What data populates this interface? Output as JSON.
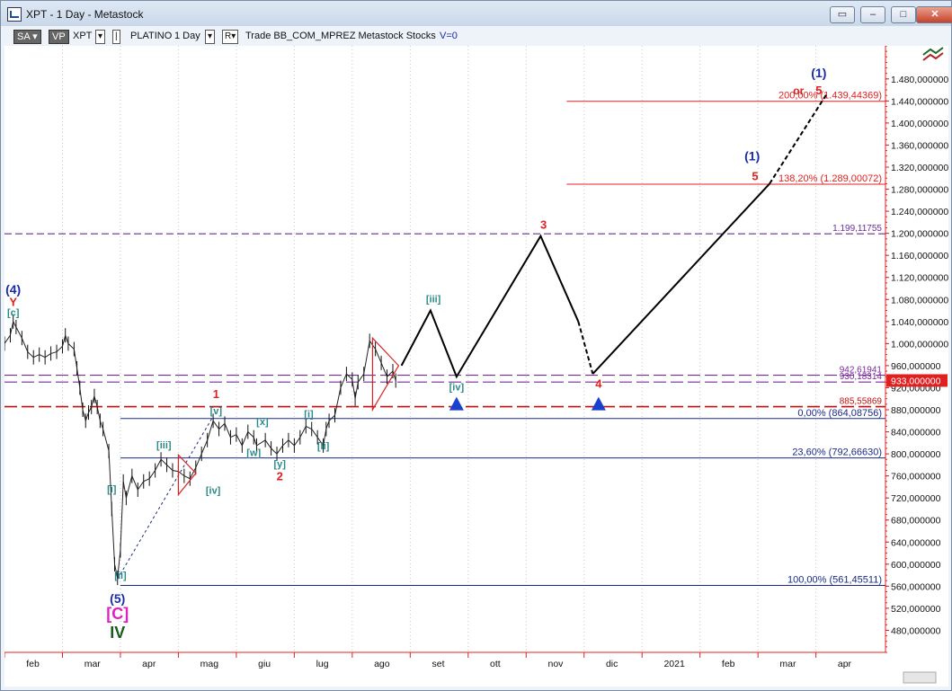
{
  "window": {
    "title": "XPT - 1 Day - Metastock",
    "buttons": [
      "restore-icon",
      "minimize-icon",
      "maximize-icon",
      "close-icon"
    ]
  },
  "toolbar": {
    "sa": "SA",
    "vp": "VP",
    "symbol": "XPT",
    "name": "PLATINO",
    "interval": "1 Day",
    "r": "R",
    "rest": "Trade  BB_COM_MPREZ  Metastock  Stocks",
    "v": "V=0"
  },
  "chart_data": {
    "type": "line",
    "ylim": [
      440,
      1540
    ],
    "y_ticks": [
      480,
      520,
      560,
      600,
      640,
      680,
      720,
      760,
      800,
      840,
      880,
      920,
      960,
      1000,
      1040,
      1080,
      1120,
      1160,
      1200,
      1240,
      1280,
      1320,
      1360,
      1400,
      1440,
      1480
    ],
    "y_tick_labels": [
      "480,000000",
      "520,000000",
      "560,000000",
      "600,000000",
      "640,000000",
      "680,000000",
      "720,000000",
      "760,000000",
      "800,000000",
      "840,000000",
      "880,000000",
      "920,000000",
      "960,000000",
      "1.000,000000",
      "1.040,000000",
      "1.080,000000",
      "1.120,000000",
      "1.160,000000",
      "1.200,000000",
      "1.240,000000",
      "1.280,000000",
      "1.320,000000",
      "1.360,000000",
      "1.400,000000",
      "1.440,000000",
      "1.480,000000"
    ],
    "x_ticks": [
      "feb",
      "mar",
      "apr",
      "mag",
      "giu",
      "lug",
      "ago",
      "set",
      "ott",
      "nov",
      "dic",
      "2021",
      "feb",
      "mar",
      "apr"
    ],
    "x_tick_pos": [
      0.5,
      1.5,
      2.5,
      3.5,
      4.5,
      5.5,
      6.5,
      7.5,
      8.5,
      9.5,
      10.5,
      11.5,
      12.5,
      13.5,
      14.5
    ],
    "last_price": 933,
    "last_price_label": "933,000000",
    "price_series": {
      "name": "",
      "points": [
        [
          0.0,
          1000
        ],
        [
          0.1,
          1015
        ],
        [
          0.15,
          1040
        ],
        [
          0.2,
          1030
        ],
        [
          0.3,
          1010
        ],
        [
          0.4,
          985
        ],
        [
          0.5,
          975
        ],
        [
          0.6,
          980
        ],
        [
          0.7,
          975
        ],
        [
          0.8,
          982
        ],
        [
          0.9,
          985
        ],
        [
          1.0,
          995
        ],
        [
          1.05,
          1015
        ],
        [
          1.1,
          1000
        ],
        [
          1.2,
          990
        ],
        [
          1.25,
          955
        ],
        [
          1.3,
          920
        ],
        [
          1.35,
          880
        ],
        [
          1.4,
          860
        ],
        [
          1.45,
          875
        ],
        [
          1.5,
          885
        ],
        [
          1.55,
          905
        ],
        [
          1.6,
          885
        ],
        [
          1.65,
          860
        ],
        [
          1.7,
          845
        ],
        [
          1.8,
          805
        ],
        [
          1.85,
          700
        ],
        [
          1.9,
          600
        ],
        [
          1.95,
          575
        ],
        [
          2.0,
          625
        ],
        [
          2.05,
          750
        ],
        [
          2.1,
          720
        ],
        [
          2.2,
          760
        ],
        [
          2.3,
          735
        ],
        [
          2.4,
          750
        ],
        [
          2.5,
          755
        ],
        [
          2.6,
          770
        ],
        [
          2.7,
          790
        ],
        [
          2.8,
          780
        ],
        [
          2.9,
          770
        ],
        [
          3.0,
          768
        ],
        [
          3.1,
          760
        ],
        [
          3.2,
          755
        ],
        [
          3.3,
          775
        ],
        [
          3.4,
          800
        ],
        [
          3.5,
          825
        ],
        [
          3.6,
          860
        ],
        [
          3.7,
          845
        ],
        [
          3.8,
          855
        ],
        [
          3.9,
          830
        ],
        [
          4.0,
          835
        ],
        [
          4.1,
          815
        ],
        [
          4.2,
          840
        ],
        [
          4.3,
          830
        ],
        [
          4.35,
          815
        ],
        [
          4.5,
          825
        ],
        [
          4.6,
          810
        ],
        [
          4.7,
          800
        ],
        [
          4.8,
          815
        ],
        [
          4.9,
          825
        ],
        [
          5.0,
          815
        ],
        [
          5.1,
          830
        ],
        [
          5.2,
          850
        ],
        [
          5.3,
          845
        ],
        [
          5.4,
          830
        ],
        [
          5.5,
          815
        ],
        [
          5.55,
          845
        ],
        [
          5.6,
          860
        ],
        [
          5.7,
          870
        ],
        [
          5.8,
          920
        ],
        [
          5.9,
          945
        ],
        [
          6.0,
          935
        ],
        [
          6.05,
          900
        ],
        [
          6.1,
          930
        ],
        [
          6.2,
          945
        ],
        [
          6.3,
          1005
        ],
        [
          6.4,
          990
        ],
        [
          6.5,
          965
        ],
        [
          6.6,
          940
        ],
        [
          6.7,
          950
        ],
        [
          6.75,
          933
        ]
      ]
    },
    "projection": {
      "solid": [
        [
          6.85,
          960
        ],
        [
          7.35,
          1060
        ],
        [
          7.8,
          940
        ],
        [
          9.25,
          1195
        ],
        [
          9.9,
          1040
        ]
      ],
      "dashed_1": [
        [
          9.9,
          1040
        ],
        [
          10.15,
          945
        ]
      ],
      "solid_2": [
        [
          10.15,
          945
        ],
        [
          13.2,
          1290
        ]
      ],
      "dashed_2": [
        [
          13.2,
          1290
        ],
        [
          14.2,
          1455
        ]
      ]
    },
    "fib_levels": [
      {
        "label": "200,00% (1.439,44369)",
        "value": 1439.44,
        "color": "#e02020"
      },
      {
        "label": "138,20% (1.289,00072)",
        "value": 1289.0,
        "color": "#e02020"
      },
      {
        "label": "0,00% (864,08756)",
        "value": 864.09,
        "color": "#1a2a8a"
      },
      {
        "label": "23,60% (792,66630)",
        "value": 792.67,
        "color": "#1a2a8a"
      },
      {
        "label": "100,00% (561,45511)",
        "value": 561.46,
        "color": "#1a2a8a"
      }
    ],
    "h_lines": [
      {
        "label": "1.199,11755",
        "value": 1199.12,
        "color": "#6b2a9a",
        "style": "dash"
      },
      {
        "label": "942,61941",
        "value": 942.62,
        "color": "#7a2a9a",
        "style": "dash"
      },
      {
        "label": "930,18314",
        "value": 930.18,
        "color": "#7a2a9a",
        "style": "dash"
      },
      {
        "label": "885,55869",
        "value": 885.56,
        "color": "#c01010",
        "style": "dash"
      }
    ],
    "wave_labels": [
      {
        "text": "(4)",
        "x": 0.15,
        "y": 1090,
        "color": "#1a2aaa",
        "size": 14
      },
      {
        "text": "Y",
        "x": 0.15,
        "y": 1068,
        "color": "#e02020",
        "size": 13
      },
      {
        "text": "[c]",
        "x": 0.15,
        "y": 1050,
        "color": "#2a8a8a",
        "size": 11
      },
      {
        "text": "(5)",
        "x": 1.95,
        "y": 530,
        "color": "#1a2aaa",
        "size": 14
      },
      {
        "text": "[C]",
        "x": 1.95,
        "y": 500,
        "color": "#e020c0",
        "size": 18
      },
      {
        "text": "IV",
        "x": 1.95,
        "y": 466,
        "color": "#1a5a1a",
        "size": 18
      },
      {
        "text": "[i]",
        "x": 1.85,
        "y": 730,
        "color": "#2a8a8a",
        "size": 11
      },
      {
        "text": "[ii]",
        "x": 2.0,
        "y": 574,
        "color": "#2a8a8a",
        "size": 11
      },
      {
        "text": "[iii]",
        "x": 2.75,
        "y": 810,
        "color": "#2a8a8a",
        "size": 11
      },
      {
        "text": "[iv]",
        "x": 3.6,
        "y": 728,
        "color": "#2a8a8a",
        "size": 11
      },
      {
        "text": "[v]",
        "x": 3.65,
        "y": 872,
        "color": "#2a8a8a",
        "size": 11
      },
      {
        "text": "1",
        "x": 3.65,
        "y": 901,
        "color": "#e02020",
        "size": 13
      },
      {
        "text": "[w]",
        "x": 4.3,
        "y": 796,
        "color": "#2a8a8a",
        "size": 11
      },
      {
        "text": "[x]",
        "x": 4.45,
        "y": 852,
        "color": "#2a8a8a",
        "size": 11
      },
      {
        "text": "[y]",
        "x": 4.75,
        "y": 776,
        "color": "#2a8a8a",
        "size": 11
      },
      {
        "text": "2",
        "x": 4.75,
        "y": 752,
        "color": "#e02020",
        "size": 13
      },
      {
        "text": "[i]",
        "x": 5.25,
        "y": 866,
        "color": "#2a8a8a",
        "size": 11
      },
      {
        "text": "[ii]",
        "x": 5.5,
        "y": 808,
        "color": "#2a8a8a",
        "size": 11
      },
      {
        "text": "[iii]",
        "x": 7.4,
        "y": 1075,
        "color": "#2a8a8a",
        "size": 11
      },
      {
        "text": "[iv]",
        "x": 7.8,
        "y": 915,
        "color": "#2a8a8a",
        "size": 11
      },
      {
        "text": "3",
        "x": 9.3,
        "y": 1208,
        "color": "#e02020",
        "size": 13
      },
      {
        "text": "4",
        "x": 10.25,
        "y": 920,
        "color": "#e02020",
        "size": 13
      },
      {
        "text": "(1)",
        "x": 12.9,
        "y": 1332,
        "color": "#1a2aaa",
        "size": 14
      },
      {
        "text": "5",
        "x": 12.95,
        "y": 1296,
        "color": "#e02020",
        "size": 13
      },
      {
        "text": "(1)",
        "x": 14.05,
        "y": 1483,
        "color": "#1a2aaa",
        "size": 14
      },
      {
        "text": "or",
        "x": 13.7,
        "y": 1452,
        "color": "#e02020",
        "size": 12
      },
      {
        "text": "5",
        "x": 14.05,
        "y": 1452,
        "color": "#e02020",
        "size": 13
      }
    ],
    "markers": [
      {
        "x": 7.8,
        "y": 892,
        "color": "#1a40d0"
      },
      {
        "x": 10.25,
        "y": 892,
        "color": "#1a40d0"
      }
    ],
    "triangles": [
      {
        "points": [
          [
            3.0,
            798
          ],
          [
            3.3,
            765
          ],
          [
            3.0,
            726
          ]
        ],
        "color": "#e02020"
      },
      {
        "points": [
          [
            6.35,
            1010
          ],
          [
            6.8,
            960
          ],
          [
            6.35,
            880
          ]
        ],
        "color": "#e02020"
      }
    ],
    "connector": {
      "points": [
        [
          1.95,
          573
        ],
        [
          3.6,
          868
        ]
      ],
      "color": "#1a2a8a"
    }
  }
}
